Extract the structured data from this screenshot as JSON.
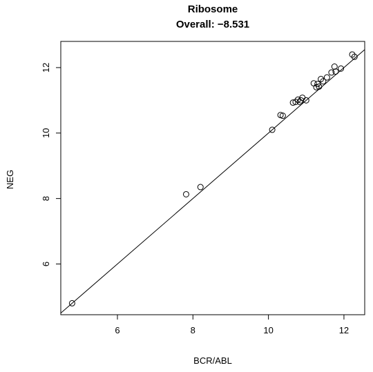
{
  "chart_data": {
    "type": "scatter",
    "title": "Ribosome",
    "subtitle": "Overall: −8.531",
    "xlabel": "BCR/ABL",
    "ylabel": "NEG",
    "xlim": [
      4.5,
      12.55
    ],
    "ylim": [
      4.45,
      12.8
    ],
    "x_ticks": [
      6,
      8,
      10,
      12
    ],
    "y_ticks": [
      6,
      8,
      10,
      12
    ],
    "grid": false,
    "reference_line": {
      "slope": 1,
      "intercept": 0
    },
    "colors": {
      "points": "#000000",
      "line": "#000000",
      "frame": "#000000"
    },
    "points": [
      {
        "x": 4.8,
        "y": 4.8
      },
      {
        "x": 7.82,
        "y": 8.13
      },
      {
        "x": 8.2,
        "y": 8.35
      },
      {
        "x": 10.1,
        "y": 10.1
      },
      {
        "x": 10.32,
        "y": 10.55
      },
      {
        "x": 10.38,
        "y": 10.53
      },
      {
        "x": 10.65,
        "y": 10.93
      },
      {
        "x": 10.72,
        "y": 10.95
      },
      {
        "x": 10.78,
        "y": 11.02
      },
      {
        "x": 10.83,
        "y": 10.95
      },
      {
        "x": 10.86,
        "y": 11.0
      },
      {
        "x": 10.9,
        "y": 11.08
      },
      {
        "x": 11.0,
        "y": 11.0
      },
      {
        "x": 11.2,
        "y": 11.52
      },
      {
        "x": 11.27,
        "y": 11.4
      },
      {
        "x": 11.3,
        "y": 11.5
      },
      {
        "x": 11.34,
        "y": 11.42
      },
      {
        "x": 11.39,
        "y": 11.65
      },
      {
        "x": 11.45,
        "y": 11.58
      },
      {
        "x": 11.55,
        "y": 11.7
      },
      {
        "x": 11.67,
        "y": 11.85
      },
      {
        "x": 11.75,
        "y": 12.03
      },
      {
        "x": 11.78,
        "y": 11.88
      },
      {
        "x": 11.92,
        "y": 11.97
      },
      {
        "x": 12.22,
        "y": 12.4
      },
      {
        "x": 12.28,
        "y": 12.33
      }
    ]
  }
}
